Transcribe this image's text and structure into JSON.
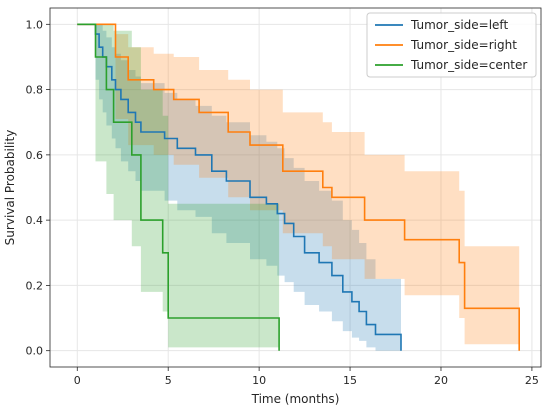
{
  "chart_data": {
    "type": "line",
    "xlabel": "Time (months)",
    "ylabel": "Survival Probability",
    "xlim": [
      -1.5,
      25.5
    ],
    "ylim": [
      -0.05,
      1.05
    ],
    "xticks": [
      "0",
      "5",
      "10",
      "15",
      "20",
      "25"
    ],
    "yticks": [
      "0.0",
      "0.2",
      "0.4",
      "0.6",
      "0.8",
      "1.0"
    ],
    "grid": true,
    "legend_position": "top-right",
    "series": [
      {
        "name": "Tumor_side=left",
        "color": "#1f77b4",
        "x": [
          0,
          0.8,
          1.0,
          1.2,
          1.4,
          1.6,
          1.9,
          2.1,
          2.4,
          2.8,
          3.2,
          3.5,
          3.9,
          4.3,
          4.8,
          5.5,
          6.5,
          7.4,
          8.2,
          9.5,
          10.4,
          11.0,
          11.4,
          11.9,
          12.5,
          13.3,
          14.0,
          14.6,
          15.1,
          15.5,
          15.9,
          16.4,
          17.8
        ],
        "y": [
          1.0,
          1.0,
          0.97,
          0.93,
          0.9,
          0.87,
          0.83,
          0.8,
          0.77,
          0.73,
          0.7,
          0.67,
          0.67,
          0.67,
          0.65,
          0.62,
          0.6,
          0.55,
          0.52,
          0.47,
          0.45,
          0.42,
          0.39,
          0.35,
          0.3,
          0.27,
          0.23,
          0.18,
          0.15,
          0.12,
          0.08,
          0.05,
          0.0
        ],
        "ci_upper": [
          1.0,
          1.0,
          1.0,
          1.0,
          0.98,
          0.96,
          0.93,
          0.91,
          0.89,
          0.86,
          0.84,
          0.82,
          0.82,
          0.82,
          0.79,
          0.77,
          0.75,
          0.72,
          0.7,
          0.66,
          0.64,
          0.62,
          0.59,
          0.56,
          0.52,
          0.49,
          0.46,
          0.4,
          0.37,
          0.33,
          0.28,
          0.22,
          0.18
        ],
        "ci_lower": [
          1.0,
          1.0,
          0.83,
          0.77,
          0.73,
          0.69,
          0.65,
          0.62,
          0.58,
          0.55,
          0.52,
          0.49,
          0.49,
          0.49,
          0.46,
          0.43,
          0.41,
          0.36,
          0.33,
          0.28,
          0.26,
          0.23,
          0.21,
          0.18,
          0.14,
          0.12,
          0.09,
          0.06,
          0.04,
          0.03,
          0.01,
          0.0,
          0.0
        ]
      },
      {
        "name": "Tumor_side=right",
        "color": "#ff7f0e",
        "x": [
          0,
          1.5,
          2.1,
          2.8,
          3.5,
          4.2,
          5.3,
          6.7,
          8.3,
          9.5,
          11.3,
          13.5,
          14.0,
          15.8,
          16.8,
          18.0,
          21.0,
          21.3,
          24.3
        ],
        "y": [
          1.0,
          1.0,
          0.9,
          0.83,
          0.83,
          0.8,
          0.77,
          0.73,
          0.67,
          0.63,
          0.55,
          0.5,
          0.47,
          0.4,
          0.4,
          0.34,
          0.27,
          0.13,
          0.0
        ],
        "ci_upper": [
          1.0,
          1.0,
          0.97,
          0.93,
          0.93,
          0.91,
          0.9,
          0.86,
          0.83,
          0.8,
          0.73,
          0.7,
          0.67,
          0.6,
          0.6,
          0.55,
          0.49,
          0.32,
          0.32
        ],
        "ci_lower": [
          1.0,
          1.0,
          0.71,
          0.63,
          0.63,
          0.6,
          0.57,
          0.53,
          0.47,
          0.43,
          0.36,
          0.32,
          0.28,
          0.22,
          0.22,
          0.17,
          0.1,
          0.02,
          0.0
        ]
      },
      {
        "name": "Tumor_side=center",
        "color": "#2ca02c",
        "x": [
          0,
          0.8,
          1.0,
          1.6,
          2.0,
          3.0,
          3.5,
          4.7,
          5.0,
          11.1
        ],
        "y": [
          1.0,
          1.0,
          0.9,
          0.8,
          0.7,
          0.6,
          0.4,
          0.3,
          0.1,
          0.0
        ],
        "ci_upper": [
          1.0,
          1.0,
          1.0,
          1.0,
          0.98,
          0.93,
          0.8,
          0.72,
          0.45,
          0.45
        ],
        "ci_lower": [
          1.0,
          1.0,
          0.58,
          0.48,
          0.4,
          0.32,
          0.18,
          0.12,
          0.01,
          0.0
        ]
      }
    ]
  }
}
